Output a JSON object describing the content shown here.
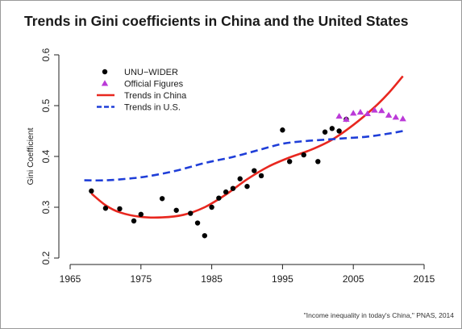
{
  "title": "Trends in Gini coefficients in China and the United States",
  "source": "\"Income inequality in today's China,\" PNAS, 2014",
  "chart_data": {
    "type": "scatter",
    "title": "Trends in Gini coefficients in China and the United States",
    "xlabel": "",
    "ylabel": "Gini Coefficient",
    "xlim": [
      1965,
      2015
    ],
    "ylim": [
      0.2,
      0.6
    ],
    "x_ticks": [
      1965,
      1975,
      1985,
      1995,
      2005,
      2015
    ],
    "y_ticks": [
      0.2,
      0.3,
      0.4,
      0.5,
      0.6
    ],
    "x_tick_labels": [
      "1965",
      "1975",
      "1985",
      "1995",
      "2005",
      "2015"
    ],
    "y_tick_labels": [
      "0.2",
      "0.3",
      "0.4",
      "0.5",
      "0.6"
    ],
    "grid": false,
    "legend_position": "top-left",
    "series": [
      {
        "name": "UNU−WIDER",
        "kind": "points",
        "marker": "circle",
        "color": "#000000",
        "points": [
          [
            1968,
            0.332
          ],
          [
            1970,
            0.298
          ],
          [
            1972,
            0.297
          ],
          [
            1974,
            0.273
          ],
          [
            1975,
            0.286
          ],
          [
            1978,
            0.317
          ],
          [
            1980,
            0.294
          ],
          [
            1982,
            0.288
          ],
          [
            1983,
            0.269
          ],
          [
            1984,
            0.244
          ],
          [
            1985,
            0.3
          ],
          [
            1986,
            0.318
          ],
          [
            1987,
            0.33
          ],
          [
            1988,
            0.337
          ],
          [
            1989,
            0.356
          ],
          [
            1990,
            0.341
          ],
          [
            1991,
            0.372
          ],
          [
            1992,
            0.362
          ],
          [
            1995,
            0.452
          ],
          [
            1996,
            0.39
          ],
          [
            1998,
            0.403
          ],
          [
            2000,
            0.39
          ],
          [
            2001,
            0.448
          ],
          [
            2002,
            0.455
          ],
          [
            2003,
            0.45
          ],
          [
            2004,
            0.473
          ]
        ]
      },
      {
        "name": "Official Figures",
        "kind": "points",
        "marker": "triangle",
        "color": "#bb3ad8",
        "points": [
          [
            2003,
            0.479
          ],
          [
            2004,
            0.473
          ],
          [
            2005,
            0.485
          ],
          [
            2006,
            0.487
          ],
          [
            2007,
            0.484
          ],
          [
            2008,
            0.491
          ],
          [
            2009,
            0.49
          ],
          [
            2010,
            0.481
          ],
          [
            2011,
            0.477
          ],
          [
            2012,
            0.474
          ]
        ]
      },
      {
        "name": "Trends in China",
        "kind": "line",
        "style": "solid",
        "color": "#e8271f",
        "points": [
          [
            1968,
            0.327
          ],
          [
            1970,
            0.304
          ],
          [
            1972,
            0.29
          ],
          [
            1975,
            0.281
          ],
          [
            1978,
            0.28
          ],
          [
            1981,
            0.285
          ],
          [
            1984,
            0.3
          ],
          [
            1987,
            0.325
          ],
          [
            1990,
            0.355
          ],
          [
            1993,
            0.38
          ],
          [
            1996,
            0.398
          ],
          [
            1999,
            0.413
          ],
          [
            2002,
            0.433
          ],
          [
            2005,
            0.462
          ],
          [
            2008,
            0.497
          ],
          [
            2010,
            0.525
          ],
          [
            2012,
            0.558
          ]
        ]
      },
      {
        "name": "Trends in U.S.",
        "kind": "line",
        "style": "dashed",
        "color": "#1f3ed8",
        "points": [
          [
            1967,
            0.353
          ],
          [
            1970,
            0.353
          ],
          [
            1973,
            0.356
          ],
          [
            1976,
            0.361
          ],
          [
            1980,
            0.372
          ],
          [
            1984,
            0.387
          ],
          [
            1988,
            0.399
          ],
          [
            1992,
            0.414
          ],
          [
            1995,
            0.425
          ],
          [
            1998,
            0.43
          ],
          [
            2001,
            0.433
          ],
          [
            2004,
            0.436
          ],
          [
            2007,
            0.439
          ],
          [
            2010,
            0.445
          ],
          [
            2012,
            0.45
          ]
        ]
      }
    ]
  }
}
